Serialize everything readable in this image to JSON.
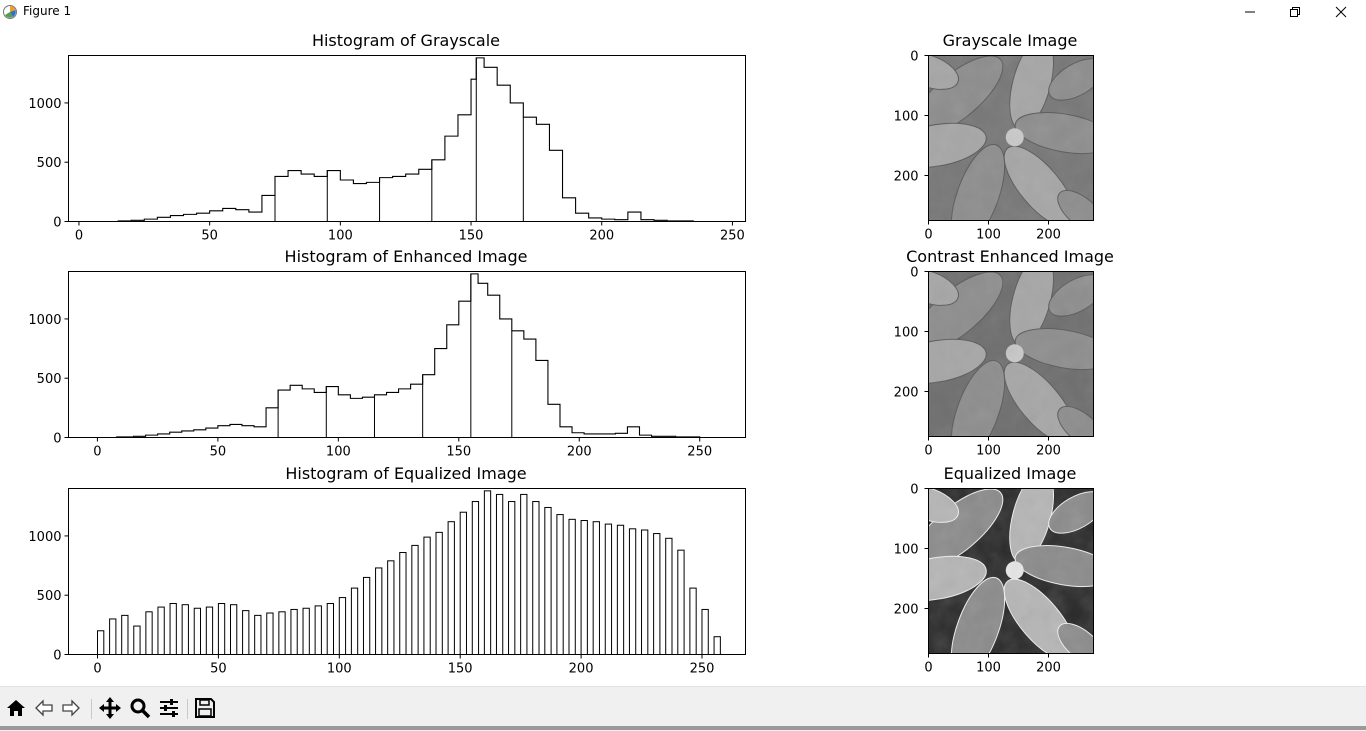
{
  "window": {
    "title": "Figure 1"
  },
  "toolbar": {
    "buttons": [
      {
        "name": "home-button",
        "icon": "home-icon"
      },
      {
        "name": "back-button",
        "icon": "arrow-left-icon"
      },
      {
        "name": "forward-button",
        "icon": "arrow-right-icon"
      },
      {
        "name": "pan-button",
        "icon": "move-icon"
      },
      {
        "name": "zoom-button",
        "icon": "magnifier-icon"
      },
      {
        "name": "configure-button",
        "icon": "sliders-icon"
      },
      {
        "name": "save-button",
        "icon": "floppy-disk-icon"
      }
    ]
  },
  "chart_data": [
    {
      "type": "line",
      "title": "Histogram of Grayscale",
      "xlim": [
        -4,
        255
      ],
      "ylim": [
        0,
        1400
      ],
      "xticks": [
        "0",
        "50",
        "100",
        "150",
        "200",
        "250"
      ],
      "yticks": [
        "0",
        "500",
        "1000"
      ],
      "x": [
        5,
        10,
        15,
        20,
        25,
        30,
        35,
        40,
        45,
        50,
        55,
        60,
        65,
        70,
        75,
        80,
        85,
        90,
        95,
        100,
        105,
        110,
        115,
        120,
        125,
        130,
        135,
        140,
        145,
        150,
        152,
        155,
        160,
        165,
        170,
        175,
        180,
        185,
        190,
        195,
        200,
        205,
        210,
        215,
        220,
        225,
        230,
        235,
        240,
        245
      ],
      "values": [
        0,
        0,
        5,
        10,
        20,
        35,
        50,
        60,
        70,
        90,
        110,
        100,
        80,
        220,
        380,
        430,
        400,
        380,
        430,
        350,
        320,
        330,
        370,
        380,
        400,
        440,
        520,
        720,
        900,
        1200,
        1380,
        1300,
        1150,
        1000,
        880,
        820,
        600,
        200,
        70,
        30,
        20,
        15,
        80,
        15,
        10,
        5,
        5,
        0,
        0,
        0
      ]
    },
    {
      "type": "line",
      "title": "Histogram of Enhanced Image",
      "xlim": [
        -12,
        269
      ],
      "ylim": [
        0,
        1400
      ],
      "xticks": [
        "0",
        "50",
        "100",
        "150",
        "200",
        "250"
      ],
      "yticks": [
        "0",
        "500",
        "1000"
      ],
      "x": [
        0,
        8,
        15,
        20,
        25,
        30,
        35,
        40,
        45,
        50,
        55,
        60,
        65,
        70,
        75,
        80,
        85,
        90,
        95,
        100,
        105,
        110,
        115,
        120,
        125,
        130,
        135,
        140,
        145,
        150,
        155,
        158,
        162,
        167,
        172,
        177,
        182,
        187,
        192,
        197,
        202,
        210,
        215,
        220,
        225,
        230,
        240,
        250,
        255
      ],
      "values": [
        0,
        5,
        10,
        20,
        30,
        45,
        55,
        65,
        80,
        100,
        110,
        100,
        90,
        250,
        400,
        440,
        410,
        380,
        430,
        360,
        330,
        340,
        360,
        380,
        410,
        450,
        530,
        750,
        950,
        1150,
        1380,
        1300,
        1200,
        1000,
        900,
        830,
        650,
        280,
        90,
        40,
        30,
        30,
        35,
        90,
        20,
        10,
        5,
        0,
        0
      ]
    },
    {
      "type": "bar",
      "title": "Histogram of Equalized Image",
      "xlim": [
        -12,
        268
      ],
      "ylim": [
        0,
        1400
      ],
      "xticks": [
        "0",
        "50",
        "100",
        "150",
        "200",
        "250"
      ],
      "yticks": [
        "0",
        "500",
        "1000"
      ],
      "x": [
        0,
        5,
        10,
        15,
        20,
        25,
        30,
        35,
        40,
        45,
        50,
        55,
        60,
        65,
        70,
        75,
        80,
        85,
        90,
        95,
        100,
        105,
        110,
        115,
        120,
        125,
        130,
        135,
        140,
        145,
        150,
        155,
        160,
        165,
        170,
        175,
        180,
        185,
        190,
        195,
        200,
        205,
        210,
        215,
        220,
        225,
        230,
        235,
        240,
        245,
        250,
        255
      ],
      "values": [
        200,
        300,
        330,
        240,
        360,
        400,
        430,
        420,
        390,
        400,
        430,
        420,
        370,
        330,
        350,
        360,
        380,
        390,
        410,
        430,
        480,
        560,
        650,
        730,
        790,
        860,
        920,
        990,
        1030,
        1120,
        1200,
        1290,
        1380,
        1350,
        1290,
        1350,
        1290,
        1240,
        1180,
        1140,
        1130,
        1120,
        1100,
        1090,
        1060,
        1050,
        1020,
        980,
        880,
        560,
        380,
        150
      ]
    }
  ],
  "images": [
    {
      "title": "Grayscale Image",
      "xticks": [
        "0",
        "100",
        "200"
      ],
      "yticks": [
        "0",
        "100",
        "200"
      ],
      "style": "grayscale"
    },
    {
      "title": "Contrast Enhanced Image",
      "xticks": [
        "0",
        "100",
        "200"
      ],
      "yticks": [
        "0",
        "100",
        "200"
      ],
      "style": "enhanced"
    },
    {
      "title": "Equalized Image",
      "xticks": [
        "0",
        "100",
        "200"
      ],
      "yticks": [
        "0",
        "100",
        "200"
      ],
      "style": "equalized"
    }
  ]
}
